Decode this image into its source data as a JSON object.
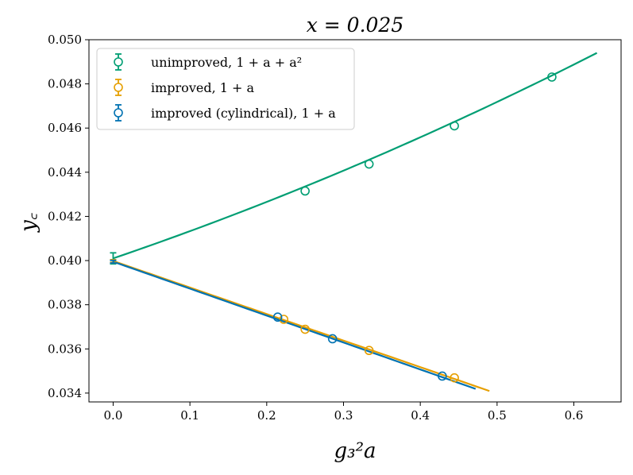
{
  "chart_data": {
    "type": "scatter",
    "title": "x = 0.025",
    "xlabel": "g₃²a",
    "ylabel": "y꜀",
    "xlim": [
      -0.0315,
      0.6615
    ],
    "ylim": [
      0.0336,
      0.05
    ],
    "xticks": [
      0.0,
      0.1,
      0.2,
      0.3,
      0.4,
      0.5,
      0.6
    ],
    "xtick_labels": [
      "0.0",
      "0.1",
      "0.2",
      "0.3",
      "0.4",
      "0.5",
      "0.6"
    ],
    "yticks": [
      0.034,
      0.036,
      0.038,
      0.04,
      0.042,
      0.044,
      0.046,
      0.048,
      0.05
    ],
    "ytick_labels": [
      "0.034",
      "0.036",
      "0.038",
      "0.040",
      "0.042",
      "0.044",
      "0.046",
      "0.048",
      "0.050"
    ],
    "grid": false,
    "legend_position": "top-left",
    "series": [
      {
        "name": "unimproved, 1 + a + a²",
        "color": "#009e73",
        "points": [
          {
            "x": 0.25,
            "y": 0.04315
          },
          {
            "x": 0.3333,
            "y": 0.04437
          },
          {
            "x": 0.4444,
            "y": 0.0461
          },
          {
            "x": 0.5714,
            "y": 0.04831
          }
        ],
        "extrapolation": {
          "x": 0.0,
          "y": 0.0401,
          "yerr": 0.00025
        },
        "fit": {
          "form": "quadratic",
          "coeffs": [
            0.0401,
            0.01186,
            0.00461
          ],
          "x_range": [
            0.0,
            0.63
          ]
        }
      },
      {
        "name": "improved, 1 + a",
        "color": "#e69f00",
        "points": [
          {
            "x": 0.2222,
            "y": 0.03734
          },
          {
            "x": 0.25,
            "y": 0.03689
          },
          {
            "x": 0.3333,
            "y": 0.03593
          },
          {
            "x": 0.4444,
            "y": 0.03469
          }
        ],
        "extrapolation": {
          "x": 0.0,
          "y": 0.03998,
          "yerr": 6e-05
        },
        "fit": {
          "form": "linear",
          "coeffs": [
            0.03998,
            -0.01201
          ],
          "x_range": [
            0.0,
            0.49
          ]
        }
      },
      {
        "name": "improved (cylindrical), 1 + a",
        "color": "#0072b2",
        "points": [
          {
            "x": 0.2143,
            "y": 0.03744
          },
          {
            "x": 0.2857,
            "y": 0.03646
          },
          {
            "x": 0.4286,
            "y": 0.03477
          }
        ],
        "extrapolation": {
          "x": 0.0,
          "y": 0.03995,
          "yerr": 6e-05
        },
        "fit": {
          "form": "linear",
          "coeffs": [
            0.03995,
            -0.0122
          ],
          "x_range": [
            0.0,
            0.472
          ]
        }
      }
    ]
  }
}
